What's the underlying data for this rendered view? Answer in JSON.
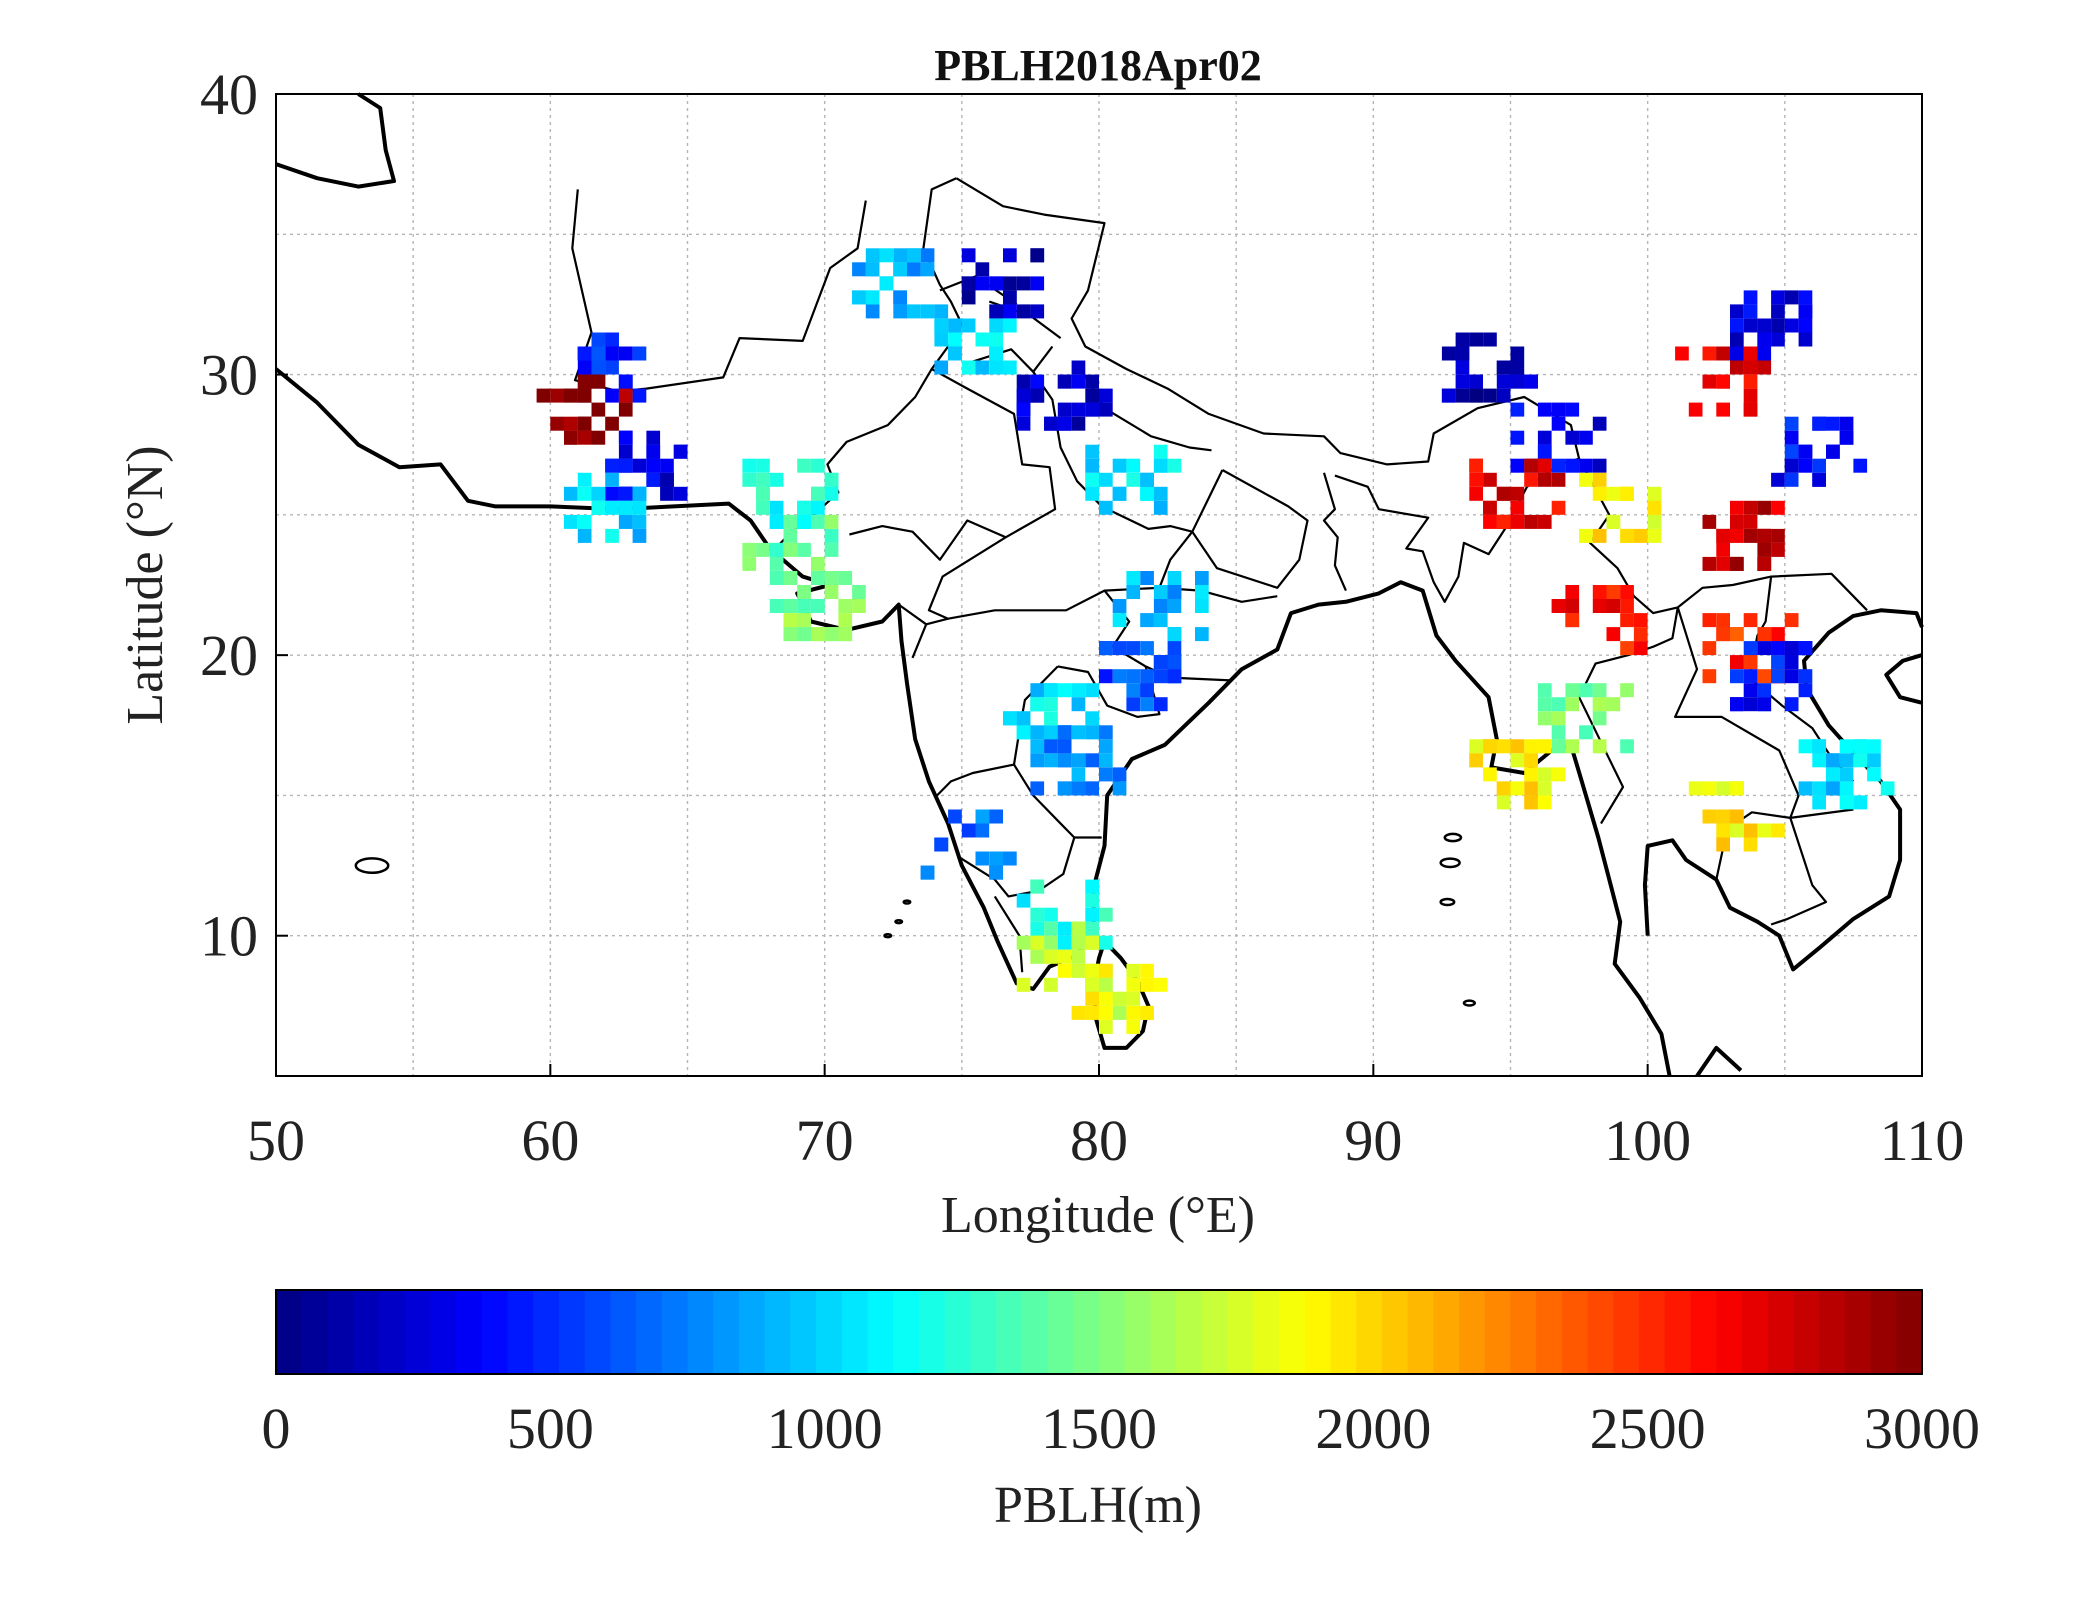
{
  "map": {
    "title": "PBLH2018Apr02",
    "xlabel": "Longitude (°E)",
    "ylabel": "Latitude (°N)",
    "xlim": [
      50,
      110
    ],
    "ylim": [
      5,
      40
    ],
    "x_ticks": [
      "50",
      "60",
      "70",
      "80",
      "90",
      "100",
      "110"
    ],
    "y_ticks": [
      "10",
      "20",
      "30",
      "40"
    ],
    "grid": true
  },
  "colorbar": {
    "label": "PBLH(m)",
    "range": [
      0,
      3000
    ],
    "ticks": [
      "0",
      "500",
      "1000",
      "1500",
      "2000",
      "2500",
      "3000"
    ],
    "colormap": "jet",
    "colors": [
      "#000080",
      "#0000ff",
      "#0080ff",
      "#00ffff",
      "#80ff80",
      "#ffff00",
      "#ff8000",
      "#ff0000",
      "#800000"
    ]
  },
  "chart_data": {
    "type": "heatmap",
    "value_units": "m",
    "cluster_note": "approximate PBLH values (m) at sampled lon/lat locations",
    "clusters": [
      {
        "lon": 62.0,
        "lat": 30.5,
        "value": 450
      },
      {
        "lon": 61.0,
        "lat": 29.0,
        "value": 2950
      },
      {
        "lon": 63.0,
        "lat": 27.0,
        "value": 300
      },
      {
        "lon": 62.0,
        "lat": 25.5,
        "value": 1000
      },
      {
        "lon": 68.5,
        "lat": 26.0,
        "value": 1200
      },
      {
        "lon": 68.5,
        "lat": 24.0,
        "value": 1400
      },
      {
        "lon": 69.5,
        "lat": 22.0,
        "value": 1500
      },
      {
        "lon": 72.0,
        "lat": 33.5,
        "value": 900
      },
      {
        "lon": 75.0,
        "lat": 31.5,
        "value": 1000
      },
      {
        "lon": 76.5,
        "lat": 33.5,
        "value": 200
      },
      {
        "lon": 78.5,
        "lat": 29.5,
        "value": 250
      },
      {
        "lon": 81.0,
        "lat": 26.5,
        "value": 1050
      },
      {
        "lon": 82.0,
        "lat": 22.0,
        "value": 900
      },
      {
        "lon": 81.5,
        "lat": 19.5,
        "value": 600
      },
      {
        "lon": 78.0,
        "lat": 18.0,
        "value": 1050
      },
      {
        "lon": 79.0,
        "lat": 16.5,
        "value": 800
      },
      {
        "lon": 75.0,
        "lat": 13.5,
        "value": 700
      },
      {
        "lon": 78.5,
        "lat": 11.0,
        "value": 1200
      },
      {
        "lon": 78.5,
        "lat": 9.5,
        "value": 1700
      },
      {
        "lon": 80.5,
        "lat": 8.0,
        "value": 1800
      },
      {
        "lon": 94.0,
        "lat": 30.5,
        "value": 150
      },
      {
        "lon": 96.5,
        "lat": 28.0,
        "value": 300
      },
      {
        "lon": 95.0,
        "lat": 26.0,
        "value": 2700
      },
      {
        "lon": 98.5,
        "lat": 25.5,
        "value": 1900
      },
      {
        "lon": 104.0,
        "lat": 32.0,
        "value": 300
      },
      {
        "lon": 102.5,
        "lat": 30.0,
        "value": 2700
      },
      {
        "lon": 106.0,
        "lat": 27.5,
        "value": 400
      },
      {
        "lon": 103.5,
        "lat": 24.5,
        "value": 2800
      },
      {
        "lon": 103.5,
        "lat": 20.5,
        "value": 2500
      },
      {
        "lon": 104.5,
        "lat": 19.5,
        "value": 400
      },
      {
        "lon": 98.0,
        "lat": 21.5,
        "value": 2600
      },
      {
        "lon": 97.5,
        "lat": 18.0,
        "value": 1500
      },
      {
        "lon": 95.0,
        "lat": 16.0,
        "value": 1900
      },
      {
        "lon": 103.0,
        "lat": 14.5,
        "value": 1900
      },
      {
        "lon": 107.0,
        "lat": 16.0,
        "value": 1000
      }
    ]
  }
}
